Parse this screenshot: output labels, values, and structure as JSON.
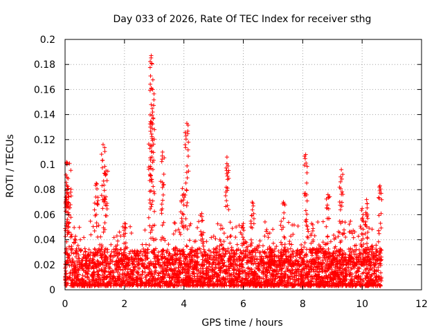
{
  "chart_data": {
    "type": "scatter",
    "title": "Day 033 of 2026, Rate Of TEC Index for receiver sthg",
    "xlabel": "GPS time / hours",
    "ylabel": "ROTI / TECUs",
    "xlim": [
      0,
      12
    ],
    "ylim": [
      0,
      0.2
    ],
    "x_ticks": [
      "0",
      "2",
      "4",
      "6",
      "8",
      "10",
      "12"
    ],
    "y_ticks": [
      "0",
      "0.02",
      "0.04",
      "0.06",
      "0.08",
      "0.1",
      "0.12",
      "0.14",
      "0.16",
      "0.18",
      "0.2"
    ],
    "grid": true,
    "marker": "+",
    "color": "#ff0000",
    "series": [
      {
        "name": "ROTI",
        "x_range": [
          0,
          10.65
        ],
        "baseline_max": 0.03,
        "peaks": [
          {
            "x": 0.05,
            "y": 0.102
          },
          {
            "x": 0.15,
            "y": 0.101
          },
          {
            "x": 0.08,
            "y": 0.081
          },
          {
            "x": 0.02,
            "y": 0.07
          },
          {
            "x": 1.05,
            "y": 0.085
          },
          {
            "x": 1.28,
            "y": 0.116
          },
          {
            "x": 1.38,
            "y": 0.095
          },
          {
            "x": 2.0,
            "y": 0.053
          },
          {
            "x": 2.9,
            "y": 0.187
          },
          {
            "x": 2.95,
            "y": 0.16
          },
          {
            "x": 2.87,
            "y": 0.13
          },
          {
            "x": 3.28,
            "y": 0.11
          },
          {
            "x": 4.1,
            "y": 0.133
          },
          {
            "x": 3.95,
            "y": 0.081
          },
          {
            "x": 4.6,
            "y": 0.061
          },
          {
            "x": 5.45,
            "y": 0.106
          },
          {
            "x": 6.0,
            "y": 0.053
          },
          {
            "x": 6.3,
            "y": 0.07
          },
          {
            "x": 7.35,
            "y": 0.07
          },
          {
            "x": 8.1,
            "y": 0.108
          },
          {
            "x": 8.3,
            "y": 0.053
          },
          {
            "x": 8.85,
            "y": 0.076
          },
          {
            "x": 9.3,
            "y": 0.096
          },
          {
            "x": 10.0,
            "y": 0.065
          },
          {
            "x": 10.15,
            "y": 0.072
          },
          {
            "x": 10.6,
            "y": 0.083
          }
        ]
      }
    ]
  }
}
